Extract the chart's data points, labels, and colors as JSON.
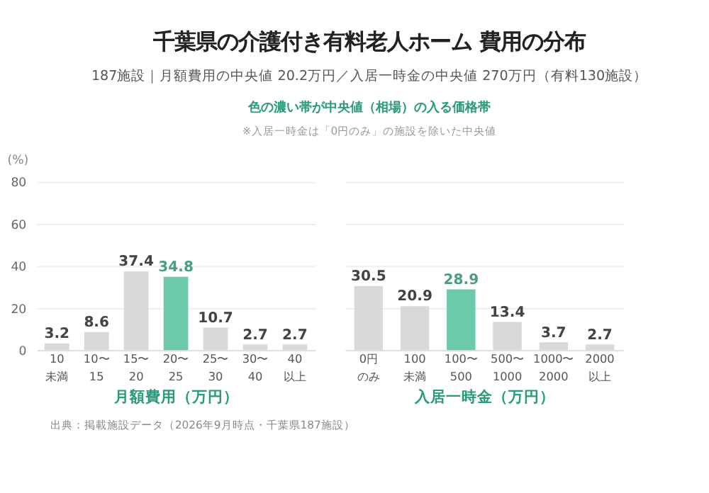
{
  "chart_data": [
    {
      "type": "bar",
      "title": "千葉県の介護付き有料老人ホーム 費用の分布",
      "subtitle": "187施設｜月額費用の中央値 20.2万円／入居一時金の中央値 270万円（有料130施設）",
      "annotations": [
        "色の濃い帯が中央値（相場）の入る価格帯",
        "※入居一時金は「0円のみ」の施設を除いた中央値",
        "出典：掲載施設データ（2026年9月時点・千葉県187施設）"
      ],
      "categories": [
        "10未満",
        "10〜15",
        "15〜20",
        "20〜25",
        "25〜30",
        "30〜40",
        "40以上"
      ],
      "values": [
        3.2,
        8.6,
        37.4,
        34.8,
        10.7,
        2.7,
        2.7
      ],
      "colors": [
        "#d9d9d9",
        "#d9d9d9",
        "#d9d9d9",
        "#6ccaa9",
        "#d9d9d9",
        "#d9d9d9",
        "#d9d9d9"
      ],
      "xlabel": "月額費用（万円）",
      "ylabel": "(%)",
      "ylim": [
        0,
        80
      ],
      "yticks": [
        0,
        20,
        40,
        60,
        80
      ],
      "grid": "y",
      "data_labels": true
    },
    {
      "type": "bar",
      "categories": [
        "0円のみ",
        "100未満",
        "100〜500",
        "500〜1000",
        "1000〜2000",
        "2000以上"
      ],
      "values": [
        30.5,
        20.9,
        28.9,
        13.4,
        3.7,
        2.7
      ],
      "colors": [
        "#d9d9d9",
        "#d9d9d9",
        "#6ccaa9",
        "#d9d9d9",
        "#d9d9d9",
        "#d9d9d9"
      ],
      "xlabel": "入居一時金（万円）",
      "ylim": [
        0,
        80
      ],
      "yticks": [
        0,
        20,
        40,
        60,
        80
      ],
      "grid": "y",
      "tick_labels": "x",
      "data_labels": true
    }
  ]
}
